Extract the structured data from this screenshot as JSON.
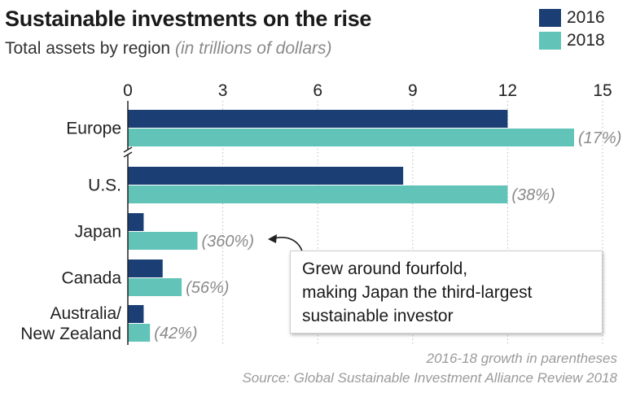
{
  "chart_data": {
    "type": "bar",
    "orientation": "horizontal",
    "title": "Sustainable investments on the rise",
    "subtitle": "Total assets by region",
    "unit_note": "(in trillions of dollars)",
    "categories": [
      "Europe",
      "U.S.",
      "Japan",
      "Canada",
      "Australia/\nNew Zealand"
    ],
    "series": [
      {
        "name": "2016",
        "color": "#1b3f74",
        "values": [
          12.0,
          8.7,
          0.5,
          1.1,
          0.5
        ]
      },
      {
        "name": "2018",
        "color": "#62c3b9",
        "values": [
          14.1,
          12.0,
          2.2,
          1.7,
          0.7
        ]
      }
    ],
    "growth_labels": [
      "(17%)",
      "(38%)",
      "(360%)",
      "(56%)",
      "(42%)"
    ],
    "xlim": [
      0,
      15
    ],
    "xticks": [
      "0",
      "3",
      "6",
      "9",
      "12",
      "15"
    ],
    "grid": true,
    "legend_position": "top-right",
    "axis_break_after": "Europe",
    "annotation": {
      "target": "Japan",
      "lines": [
        "Grew around fourfold,",
        "making Japan the third-largest",
        "sustainable investor"
      ]
    },
    "footnote": "2016-18 growth in parentheses",
    "source": "Source: Global Sustainable Investment Alliance Review 2018"
  }
}
